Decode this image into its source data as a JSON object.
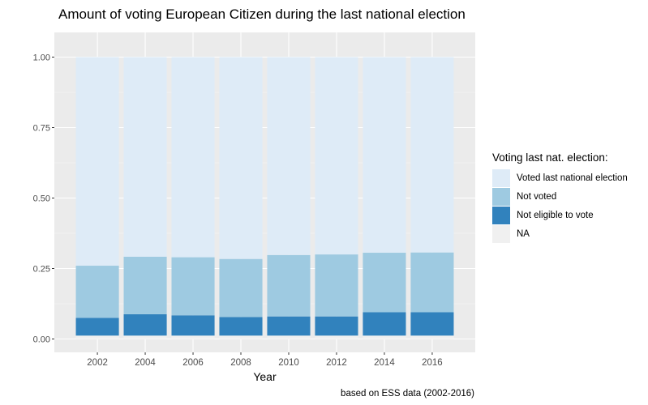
{
  "chart_data": {
    "type": "bar",
    "stacked": true,
    "title": "Amount of voting European Citizen during the last national election",
    "xlabel": "Year",
    "ylabel": "",
    "categories": [
      "2002",
      "2004",
      "2006",
      "2008",
      "2010",
      "2012",
      "2014",
      "2016"
    ],
    "ylim": [
      0,
      1
    ],
    "yticks": [
      "0.00",
      "0.25",
      "0.50",
      "0.75",
      "1.00"
    ],
    "grid": true,
    "legend_position": "right",
    "legend_title": "Voting last nat. election:",
    "series": [
      {
        "name": "NA",
        "color": "#f0f0f0",
        "values": [
          0.012,
          0.012,
          0.012,
          0.012,
          0.012,
          0.012,
          0.012,
          0.012
        ]
      },
      {
        "name": "Not eligible to vote",
        "color": "#3182bd",
        "values": [
          0.063,
          0.076,
          0.072,
          0.066,
          0.068,
          0.068,
          0.083,
          0.083
        ]
      },
      {
        "name": "Not voted",
        "color": "#9ecae1",
        "values": [
          0.185,
          0.204,
          0.206,
          0.206,
          0.218,
          0.22,
          0.211,
          0.212
        ]
      },
      {
        "name": "Voted last national election",
        "color": "#deebf7",
        "values": [
          0.74,
          0.708,
          0.71,
          0.716,
          0.702,
          0.7,
          0.694,
          0.693
        ]
      }
    ],
    "legend_order": [
      "Voted last national election",
      "Not voted",
      "Not eligible to vote",
      "NA"
    ],
    "caption": "based on ESS data (2002-2016)"
  }
}
